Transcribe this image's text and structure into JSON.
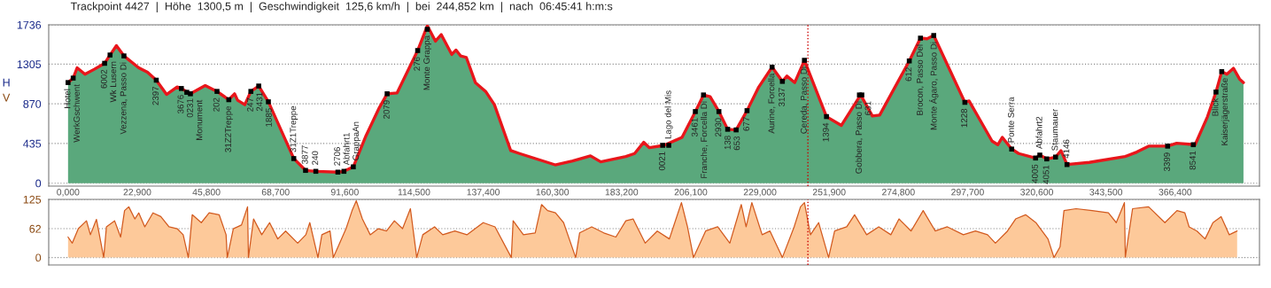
{
  "chart_data": [
    {
      "type": "area",
      "title": "Trackpoint 4427  |  Höhe  1300,5 m  |  Geschwindigkeit  125,6 km/h  |  bei  244,852 km  |  nach  06:45:41 h:m:s",
      "ylabel": "H",
      "xlim": [
        -6.4,
        394.3
      ],
      "ylim": [
        -32,
        1736
      ],
      "xticks": [
        {
          "value": 0,
          "label": "0,000"
        },
        {
          "value": 22.9,
          "label": "22,900"
        },
        {
          "value": 45.8,
          "label": "45,800"
        },
        {
          "value": 68.7,
          "label": "68,700"
        },
        {
          "value": 91.6,
          "label": "91,600"
        },
        {
          "value": 114.5,
          "label": "114,500"
        },
        {
          "value": 137.4,
          "label": "137,400"
        },
        {
          "value": 160.3,
          "label": "160,300"
        },
        {
          "value": 183.2,
          "label": "183,200"
        },
        {
          "value": 206.1,
          "label": "206,100"
        },
        {
          "value": 229.0,
          "label": "229,000"
        },
        {
          "value": 251.9,
          "label": "251,900"
        },
        {
          "value": 274.8,
          "label": "274,800"
        },
        {
          "value": 297.7,
          "label": "297,700"
        },
        {
          "value": 320.6,
          "label": "320,600"
        },
        {
          "value": 343.5,
          "label": "343,500"
        },
        {
          "value": 366.4,
          "label": "366,400"
        }
      ],
      "yticks": [
        0,
        435,
        870,
        1305,
        1736
      ],
      "grid": "y",
      "ref_lines": [
        {
          "axis": "x",
          "value": 244.852,
          "color": "#cc0000",
          "line_style": "dotted"
        }
      ],
      "series": [
        {
          "type": "area",
          "color": "#5aa87c",
          "x": [
            0,
            1.7,
            3.0,
            5.6,
            8.7,
            12.1,
            13.9,
            16.0,
            18.5,
            23.4,
            26.3,
            29.2,
            32.6,
            36.1,
            37.5,
            40.5,
            45.4,
            49.3,
            53.2,
            55.1,
            56.1,
            58.5,
            60.5,
            63.1,
            66.3,
            74.7,
            78.6,
            82.0,
            89.3,
            91.3,
            94.4,
            98.6,
            103.0,
            105.6,
            108.9,
            115.7,
            118.9,
            121.6,
            123.5,
            127.0,
            128.4,
            129.9,
            131.8,
            134.8,
            138.2,
            141.1,
            146.5,
            149.4,
            161.2,
            167.0,
            172.9,
            176.3,
            184.6,
            187.5,
            190.5,
            192.4,
            197.3,
            203.2,
            207.6,
            210.3,
            212.5,
            215.4,
            218.3,
            221.1,
            224.7,
            228.6,
            233.0,
            236.4,
            237.9,
            240.5,
            243.7,
            251.0,
            255.9,
            262.3,
            266.2,
            268.6,
            278.4,
            282.1,
            284.3,
            286.5,
            296.8,
            298.2,
            305.8,
            307.7,
            309.2,
            312.3,
            314.6,
            320.2,
            321.6,
            323.9,
            326.8,
            328.6,
            330.6,
            338.0,
            349.8,
            353.7,
            357.6,
            363.9,
            366.9,
            373.0,
            377.1,
            379.9,
            381.8,
            383.5,
            385.7,
            387.7,
            389.0
          ],
          "values": [
            1103,
            1152,
            1265,
            1194,
            1249,
            1314,
            1405,
            1508,
            1395,
            1265,
            1216,
            1129,
            973,
            1055,
            1038,
            980,
            1070,
            1006,
            915,
            980,
            909,
            860,
            1006,
            1065,
            892,
            270,
            140,
            130,
            121,
            130,
            179,
            520,
            827,
            980,
            990,
            1454,
            1726,
            1557,
            1629,
            1411,
            1460,
            1395,
            1379,
            1103,
            1006,
            860,
            357,
            325,
            201,
            243,
            299,
            234,
            292,
            325,
            448,
            389,
            415,
            503,
            785,
            967,
            948,
            785,
            591,
            584,
            795,
            1055,
            1272,
            1116,
            1174,
            1103,
            1347,
            730,
            633,
            967,
            737,
            746,
            1340,
            1590,
            1583,
            1619,
            886,
            902,
            461,
            422,
            503,
            374,
            325,
            276,
            308,
            266,
            286,
            357,
            204,
            228,
            292,
            341,
            406,
            406,
            438,
            422,
            730,
            999,
            1223,
            1194,
            1259,
            1142,
            1103
          ]
        },
        {
          "type": "line",
          "color": "#e8161b",
          "x": [
            0,
            1.7,
            3.0,
            5.6,
            8.7,
            12.1,
            13.9,
            16.0,
            18.5,
            23.4,
            26.3,
            29.2,
            32.6,
            36.1,
            37.5,
            40.5,
            45.4,
            49.3,
            53.2,
            55.1,
            56.1,
            58.5,
            60.5,
            63.1,
            66.3,
            74.7,
            78.6,
            82.0,
            89.3,
            91.3,
            94.4,
            98.6,
            103.0,
            105.6,
            108.9,
            115.7,
            118.9,
            121.6,
            123.5,
            127.0,
            128.4,
            129.9,
            131.8,
            134.8,
            138.2,
            141.1,
            146.5,
            149.4,
            161.2,
            167.0,
            172.9,
            176.3,
            184.6,
            187.5,
            190.5,
            192.4,
            197.3,
            203.2,
            207.6,
            210.3,
            212.5,
            215.4,
            218.3,
            221.1,
            224.7,
            228.6,
            233.0,
            236.4,
            237.9,
            240.5,
            243.7,
            251.0,
            255.9,
            262.3,
            266.2,
            268.6,
            278.4,
            282.1,
            284.3,
            286.5,
            296.8,
            298.2,
            305.8,
            307.7,
            309.2,
            312.3,
            314.6,
            320.2,
            321.6,
            323.9,
            326.8,
            328.6,
            330.6,
            338.0,
            349.8,
            353.7,
            357.6,
            363.9,
            366.9,
            373.0,
            377.1,
            379.9,
            381.8,
            383.5,
            385.7,
            387.7,
            389.0
          ],
          "values": [
            1103,
            1152,
            1265,
            1194,
            1249,
            1314,
            1405,
            1508,
            1395,
            1265,
            1216,
            1129,
            973,
            1055,
            1038,
            980,
            1070,
            1006,
            915,
            980,
            909,
            860,
            1006,
            1065,
            892,
            270,
            140,
            130,
            121,
            130,
            179,
            520,
            827,
            980,
            990,
            1454,
            1726,
            1557,
            1629,
            1411,
            1460,
            1395,
            1379,
            1103,
            1006,
            860,
            357,
            325,
            201,
            243,
            299,
            234,
            292,
            325,
            448,
            389,
            415,
            503,
            785,
            967,
            948,
            785,
            591,
            584,
            795,
            1055,
            1272,
            1116,
            1174,
            1103,
            1347,
            730,
            633,
            967,
            737,
            746,
            1340,
            1590,
            1583,
            1619,
            886,
            902,
            461,
            422,
            503,
            374,
            325,
            276,
            308,
            266,
            286,
            357,
            204,
            228,
            292,
            341,
            406,
            406,
            438,
            422,
            730,
            999,
            1223,
            1194,
            1259,
            1142,
            1103
          ]
        },
        {
          "type": "scatter",
          "color": "#000000",
          "marker": "square",
          "x": [
            0,
            1.7,
            12.1,
            13.9,
            18.5,
            29.2,
            37.5,
            39.3,
            40.5,
            49.3,
            53.2,
            60.5,
            63.1,
            66.3,
            74.7,
            78.6,
            82.0,
            89.3,
            91.3,
            94.4,
            105.6,
            115.7,
            118.9,
            196.8,
            198.8,
            207.6,
            210.3,
            215.4,
            218.3,
            221.1,
            224.7,
            233.0,
            236.4,
            243.7,
            251.0,
            261.9,
            262.7,
            278.4,
            282.1,
            286.5,
            296.8,
            312.3,
            320.2,
            321.6,
            323.9,
            326.8,
            330.6,
            363.9,
            372.4,
            379.9,
            381.8
          ],
          "values": [
            1103,
            1152,
            1314,
            1405,
            1395,
            1129,
            1038,
            996,
            980,
            1006,
            915,
            1006,
            1065,
            892,
            270,
            140,
            130,
            121,
            130,
            179,
            980,
            1454,
            1687,
            415,
            415,
            785,
            967,
            785,
            591,
            584,
            795,
            1272,
            1116,
            1347,
            730,
            967,
            967,
            1340,
            1590,
            1619,
            886,
            374,
            276,
            308,
            266,
            286,
            204,
            406,
            422,
            999,
            1223
          ]
        }
      ],
      "annotations": [
        {
          "text": "Hotel",
          "x": 0,
          "y": 1103
        },
        {
          "text": "WerkGschwent",
          "x": 1.7,
          "y": 1152
        },
        {
          "text": "6002",
          "x": 12.1,
          "y": 1314
        },
        {
          "text": "Wk Lusern",
          "x": 13.9,
          "y": 1405
        },
        {
          "text": "Vezzena, Passo Di",
          "x": 18.5,
          "y": 1395
        },
        {
          "text": "2397",
          "x": 29.2,
          "y": 1129
        },
        {
          "text": "3676",
          "x": 37.5,
          "y": 1038
        },
        {
          "text": "0231",
          "x": 39.3,
          "y": 996
        },
        {
          "text": "Monument",
          "x": 40.5,
          "y": 980
        },
        {
          "text": "202",
          "x": 49.3,
          "y": 1006
        },
        {
          "text": "31Z2Treppe",
          "x": 53.2,
          "y": 915
        },
        {
          "text": "247",
          "x": 60.5,
          "y": 1006
        },
        {
          "text": "2431",
          "x": 63.1,
          "y": 1065
        },
        {
          "text": "1885",
          "x": 66.3,
          "y": 892
        },
        {
          "text": "31Z1Treppe",
          "x": 74.7,
          "y": 270
        },
        {
          "text": "3877",
          "x": 78.6,
          "y": 140
        },
        {
          "text": "240",
          "x": 82.0,
          "y": 130
        },
        {
          "text": "2706",
          "x": 89.3,
          "y": 121
        },
        {
          "text": "Abfahrt1",
          "x": 91.3,
          "y": 130
        },
        {
          "text": "GrappaAn",
          "x": 94.4,
          "y": 179
        },
        {
          "text": "2079",
          "x": 105.6,
          "y": 980
        },
        {
          "text": "276",
          "x": 115.7,
          "y": 1454
        },
        {
          "text": "Monte Grappa",
          "x": 118.9,
          "y": 1687
        },
        {
          "text": "0021",
          "x": 196.8,
          "y": 415
        },
        {
          "text": "Lago del Mis",
          "x": 198.8,
          "y": 415
        },
        {
          "text": "3461",
          "x": 207.6,
          "y": 785
        },
        {
          "text": "Franche, Forcella Di",
          "x": 210.3,
          "y": 967
        },
        {
          "text": "2930",
          "x": 215.4,
          "y": 785
        },
        {
          "text": "138",
          "x": 218.3,
          "y": 591
        },
        {
          "text": "653",
          "x": 221.1,
          "y": 584
        },
        {
          "text": "677",
          "x": 224.7,
          "y": 795
        },
        {
          "text": "Aurine, Forcella",
          "x": 233.0,
          "y": 1272
        },
        {
          "text": "3137",
          "x": 236.4,
          "y": 1116
        },
        {
          "text": "Cereda, Passo Di",
          "x": 243.7,
          "y": 1347
        },
        {
          "text": "1394",
          "x": 251.0,
          "y": 730
        },
        {
          "text": "Gobbera, Passo Di",
          "x": 261.9,
          "y": 967
        },
        {
          "text": "631",
          "x": 262.7,
          "y": 967
        },
        {
          "text": "612",
          "x": 278.4,
          "y": 1340
        },
        {
          "text": "Brocon, Passo Del",
          "x": 282.1,
          "y": 1590
        },
        {
          "text": "Monte Ágaro, Passo Di",
          "x": 286.5,
          "y": 1619
        },
        {
          "text": "1228",
          "x": 296.8,
          "y": 886
        },
        {
          "text": "Ponte Serra",
          "x": 312.3,
          "y": 374
        },
        {
          "text": "4005",
          "x": 320.2,
          "y": 276
        },
        {
          "text": "Abfahrt2",
          "x": 321.6,
          "y": 308
        },
        {
          "text": "4051",
          "x": 323.9,
          "y": 266
        },
        {
          "text": "Staumauer",
          "x": 326.8,
          "y": 286
        },
        {
          "text": "4146",
          "x": 330.6,
          "y": 204
        },
        {
          "text": "3399",
          "x": 363.9,
          "y": 406
        },
        {
          "text": "8541",
          "x": 372.4,
          "y": 422
        },
        {
          "text": "Blick",
          "x": 379.9,
          "y": 999
        },
        {
          "text": "Kaiserjägerstraße",
          "x": 381.8,
          "y": 1223
        }
      ]
    },
    {
      "type": "area",
      "ylabel": "V",
      "tick_labels": "y",
      "xlim": [
        -6.4,
        394.3
      ],
      "ylim": [
        -16,
        125
      ],
      "yticks": [
        0,
        62,
        125
      ],
      "grid": "y",
      "ref_lines": [
        {
          "axis": "x",
          "value": 244.852,
          "color": "#cc0000",
          "line_style": "dotted"
        }
      ],
      "series": [
        {
          "type": "area",
          "color": "#fdc99a",
          "x": [
            0,
            1.4,
            3.4,
            6.1,
            7.4,
            9.4,
            11.8,
            12.7,
            15.4,
            17.4,
            18.7,
            20.1,
            22.1,
            23.4,
            25.4,
            28.1,
            30.7,
            33.4,
            36.1,
            38.1,
            39.8,
            41.1,
            44.1,
            46.7,
            50.0,
            52.3,
            52.7,
            54.7,
            57.4,
            59.4,
            59.7,
            61.4,
            64.1,
            66.7,
            69.4,
            72.0,
            76.0,
            78.7,
            80.0,
            82.7,
            84.0,
            86.7,
            87.8,
            92.0,
            94.0,
            95.4,
            97.4,
            100.0,
            102.7,
            105.4,
            108.0,
            110.7,
            113.3,
            115.4,
            117.4,
            121.3,
            124.0,
            128.0,
            132.0,
            137.4,
            141.3,
            146.7,
            147.3,
            150.7,
            154.6,
            156.7,
            158.7,
            161.3,
            164.0,
            168.0,
            169.3,
            173.3,
            177.3,
            181.3,
            184.6,
            187.0,
            191.0,
            195.0,
            199.0,
            203.0,
            205.0,
            207.0,
            211.0,
            215.0,
            219.0,
            222.8,
            224.4,
            226.3,
            229.7,
            232.3,
            236.4,
            240.3,
            242.4,
            243.7,
            245.7,
            248.4,
            251.7,
            253.7,
            257.7,
            260.3,
            264.3,
            268.3,
            272.3,
            275.0,
            279.0,
            283.0,
            287.0,
            291.0,
            296.3,
            300.3,
            304.3,
            306.9,
            310.9,
            313.6,
            316.9,
            320.3,
            324.3,
            326.3,
            328.3,
            329.6,
            333.6,
            338.9,
            344.3,
            346.9,
            349.6,
            349.9,
            352.3,
            357.6,
            363.0,
            367.0,
            369.6,
            371.0,
            373.6,
            376.3,
            378.9,
            381.6,
            384.3,
            386.9
          ],
          "values": [
            44,
            31,
            62,
            79,
            49,
            82,
            0,
            66,
            79,
            44,
            101,
            109,
            83,
            96,
            66,
            96,
            88,
            66,
            62,
            49,
            0,
            92,
            75,
            96,
            92,
            49,
            0,
            62,
            70,
            109,
            0,
            83,
            49,
            75,
            40,
            57,
            31,
            49,
            75,
            0,
            49,
            57,
            0,
            62,
            101,
            122,
            83,
            49,
            62,
            57,
            79,
            62,
            105,
            0,
            49,
            66,
            49,
            57,
            49,
            75,
            66,
            0,
            79,
            49,
            53,
            114,
            101,
            96,
            75,
            0,
            53,
            66,
            53,
            44,
            79,
            83,
            31,
            57,
            40,
            118,
            66,
            0,
            57,
            66,
            31,
            114,
            66,
            118,
            49,
            57,
            0,
            66,
            109,
            118,
            49,
            75,
            0,
            57,
            66,
            92,
            49,
            66,
            49,
            83,
            57,
            101,
            57,
            66,
            49,
            57,
            49,
            31,
            57,
            83,
            92,
            75,
            40,
            0,
            23,
            101,
            105,
            101,
            96,
            75,
            118,
            1,
            105,
            109,
            75,
            101,
            96,
            66,
            57,
            40,
            75,
            88,
            49,
            57
          ]
        }
      ]
    }
  ]
}
